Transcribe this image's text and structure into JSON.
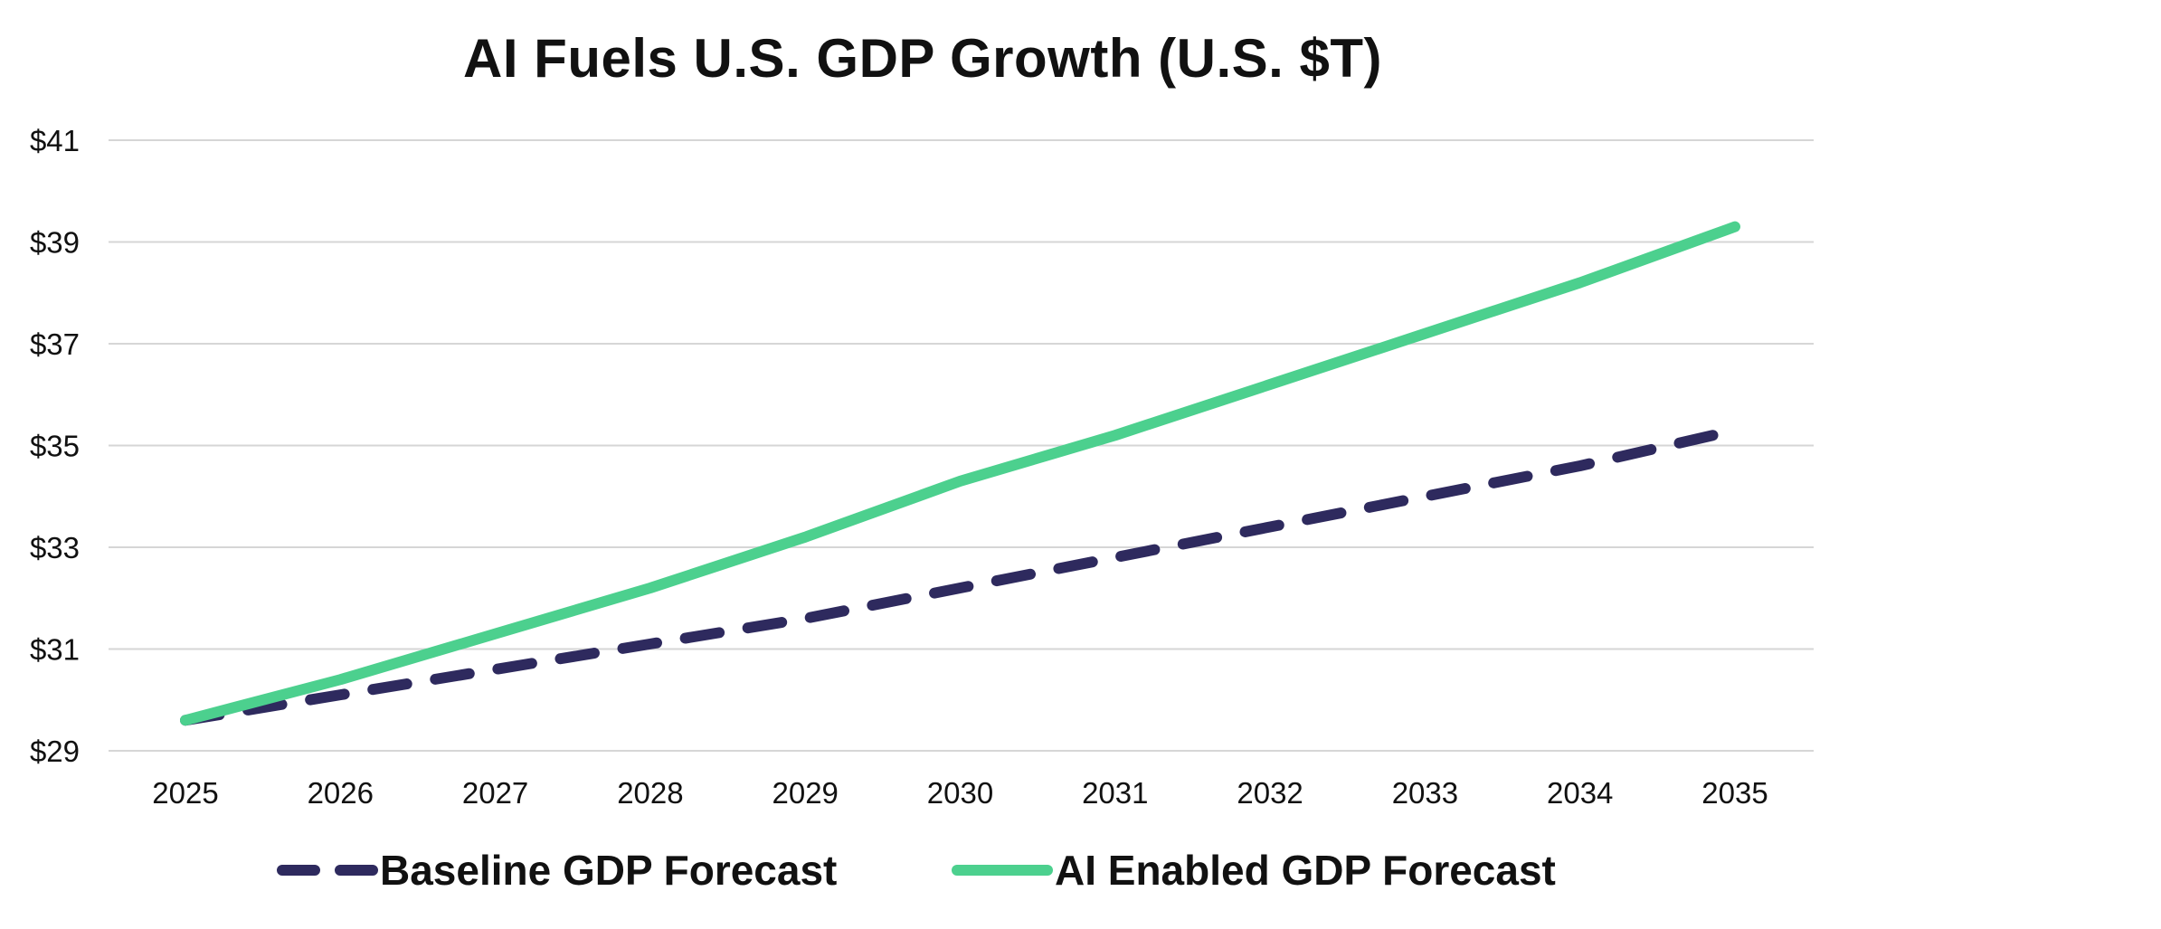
{
  "chart_data": {
    "type": "line",
    "title": "AI Fuels U.S. GDP Growth (U.S. $T)",
    "xlabel": "",
    "ylabel": "",
    "categories": [
      "2025",
      "2026",
      "2027",
      "2028",
      "2029",
      "2030",
      "2031",
      "2032",
      "2033",
      "2034",
      "2035"
    ],
    "y_ticks": [
      {
        "value": 29,
        "label": "$29"
      },
      {
        "value": 31,
        "label": "$31"
      },
      {
        "value": 33,
        "label": "$33"
      },
      {
        "value": 35,
        "label": "$35"
      },
      {
        "value": 37,
        "label": "$37"
      },
      {
        "value": 39,
        "label": "$39"
      },
      {
        "value": 41,
        "label": "$41"
      }
    ],
    "ylim": [
      29,
      41
    ],
    "grid": "horizontal",
    "legend_position": "bottom",
    "series": [
      {
        "name": "Baseline GDP Forecast",
        "style": "dashed",
        "color": "#2e2a5e",
        "values": [
          29.6,
          30.1,
          30.6,
          31.1,
          31.6,
          32.2,
          32.8,
          33.4,
          34.0,
          34.6,
          35.3
        ]
      },
      {
        "name": "AI Enabled GDP Forecast",
        "style": "solid",
        "color": "#4cd08e",
        "values": [
          29.6,
          30.4,
          31.3,
          32.2,
          33.2,
          34.3,
          35.2,
          36.2,
          37.2,
          38.2,
          39.3
        ]
      }
    ]
  }
}
